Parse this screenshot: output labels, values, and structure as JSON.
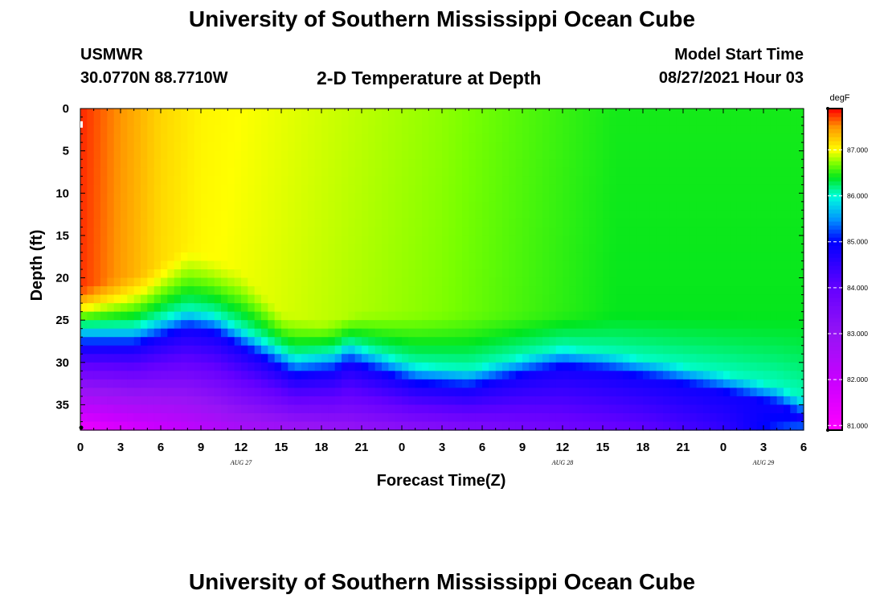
{
  "header": {
    "title": "University of Southern Mississippi Ocean Cube",
    "station": "USMWR",
    "coords": "30.0770N  88.7710W",
    "product": "2-D Temperature at Depth",
    "model_label": "Model Start Time",
    "model_time": "08/27/2021 Hour 03"
  },
  "footer": {
    "title": "University of Southern Mississippi Ocean Cube"
  },
  "chart_data": {
    "type": "heatmap",
    "title": "2-D Temperature at Depth",
    "xlabel": "Forecast Time(Z)",
    "ylabel": "Depth (ft)",
    "x_ticks": [
      "0",
      "3",
      "6",
      "9",
      "12",
      "15",
      "18",
      "21",
      "0",
      "3",
      "6",
      "9",
      "12",
      "15",
      "18",
      "21",
      "0",
      "3",
      "6"
    ],
    "x_range_hours": [
      0,
      54
    ],
    "date_labels": [
      {
        "text": "AUG 27",
        "hour": 12
      },
      {
        "text": "AUG 28",
        "hour": 36
      },
      {
        "text": "AUG 29",
        "hour": 51
      }
    ],
    "y_ticks": [
      0,
      5,
      10,
      15,
      20,
      25,
      30,
      35
    ],
    "ylim": [
      38,
      0
    ],
    "colorbar": {
      "unit": "degF",
      "labels": [
        "87.000",
        "86.000",
        "85.000",
        "84.000",
        "83.000",
        "82.000",
        "81.000"
      ],
      "values": [
        87,
        86,
        85,
        84,
        83,
        82,
        81
      ],
      "range": [
        80.9,
        87.9
      ]
    },
    "surface_temp_degF": [
      {
        "hour": 0,
        "value": 87.8
      },
      {
        "hour": 3,
        "value": 87.5
      },
      {
        "hour": 6,
        "value": 87.2
      },
      {
        "hour": 9,
        "value": 87.05
      },
      {
        "hour": 15,
        "value": 86.95
      },
      {
        "hour": 27,
        "value": 86.75
      },
      {
        "hour": 40,
        "value": 86.45
      },
      {
        "hour": 54,
        "value": 86.45
      }
    ],
    "thermocline_depth_ft": [
      {
        "hour": 0,
        "value": 27.0
      },
      {
        "hour": 4,
        "value": 27.0
      },
      {
        "hour": 8,
        "value": 25.0
      },
      {
        "hour": 10,
        "value": 25.5
      },
      {
        "hour": 13,
        "value": 28.0
      },
      {
        "hour": 16,
        "value": 30.5
      },
      {
        "hour": 19,
        "value": 30.0
      },
      {
        "hour": 20,
        "value": 29.0
      },
      {
        "hour": 22,
        "value": 30.0
      },
      {
        "hour": 25,
        "value": 31.5
      },
      {
        "hour": 29,
        "value": 32.0
      },
      {
        "hour": 33,
        "value": 30.5
      },
      {
        "hour": 36,
        "value": 29.5
      },
      {
        "hour": 39,
        "value": 30.0
      },
      {
        "hour": 43,
        "value": 31.0
      },
      {
        "hour": 48,
        "value": 32.5
      },
      {
        "hour": 52,
        "value": 34.0
      },
      {
        "hour": 54,
        "value": 35.5
      }
    ],
    "warm_layer_depth_ft": [
      {
        "hour": 0,
        "value": 21.0
      },
      {
        "hour": 5,
        "value": 19.0
      },
      {
        "hour": 8,
        "value": 16.0
      },
      {
        "hour": 12,
        "value": 19.0
      },
      {
        "hour": 15,
        "value": 24.0
      },
      {
        "hour": 18,
        "value": 25.0
      },
      {
        "hour": 21,
        "value": 24.0
      },
      {
        "hour": 36,
        "value": 24.0
      },
      {
        "hour": 54,
        "value": 24.0
      }
    ],
    "bottom_temp_degF": [
      {
        "hour": 0,
        "value": 81.2
      },
      {
        "hour": 12,
        "value": 82.6
      },
      {
        "hour": 27,
        "value": 83.3
      },
      {
        "hour": 42,
        "value": 84.0
      },
      {
        "hour": 48,
        "value": 84.5
      },
      {
        "hour": 54,
        "value": 85.5
      }
    ]
  }
}
